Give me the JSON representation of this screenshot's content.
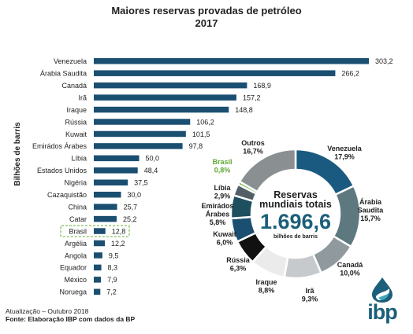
{
  "chart_data": [
    {
      "type": "bar",
      "orientation": "horizontal",
      "title": "Maiores reservas provadas de petróleo",
      "subtitle": "2017",
      "ylabel": "Bilhões de barris",
      "categories": [
        "Venezuela",
        "Árabia Saudita",
        "Canadá",
        "Irã",
        "Iraque",
        "Rússia",
        "Kuwait",
        "Emirádos Árabes",
        "Líbia",
        "Estados Unidos",
        "Nigéria",
        "Cazaquistão",
        "China",
        "Catar",
        "Brasil",
        "Argélia",
        "Angola",
        "Equador",
        "México",
        "Noruega"
      ],
      "values": [
        303.2,
        266.2,
        168.9,
        157.2,
        148.8,
        106.2,
        101.5,
        97.8,
        50.0,
        48.4,
        37.5,
        30.0,
        25.7,
        25.2,
        12.8,
        12.2,
        9.5,
        8.3,
        7.9,
        7.2
      ],
      "value_labels": [
        "303,2",
        "266,2",
        "168,9",
        "157,2",
        "148,8",
        "106,2",
        "101,5",
        "97,8",
        "50,0",
        "48,4",
        "37,5",
        "30,0",
        "25,7",
        "25,2",
        "12,8",
        "12,2",
        "9,5",
        "8,3",
        "7,9",
        "7,2"
      ],
      "highlight": "Brasil",
      "xlim": [
        0,
        303.2
      ],
      "bar_color": "#1b4f72",
      "highlight_color": "#74b843"
    },
    {
      "type": "pie",
      "style": "donut",
      "center_title": "Reservas mundiais totais",
      "center_value": "1.696,6",
      "center_unit": "bilhões de barris",
      "slices": [
        {
          "label": "Venezuela",
          "value": 17.9,
          "value_label": "17,9%",
          "color": "#1a5a80"
        },
        {
          "label": "Árabia Saudita",
          "value": 15.7,
          "value_label": "15,7%",
          "color": "#5e7880"
        },
        {
          "label": "Canadá",
          "value": 10.0,
          "value_label": "10,0%",
          "color": "#909a9e"
        },
        {
          "label": "Irã",
          "value": 9.3,
          "value_label": "9,3%",
          "color": "#c6cacc"
        },
        {
          "label": "Iraque",
          "value": 8.8,
          "value_label": "8,8%",
          "color": "#ebebeb"
        },
        {
          "label": "Rússia",
          "value": 6.3,
          "value_label": "6,3%",
          "color": "#111111"
        },
        {
          "label": "Kuwait",
          "value": 6.0,
          "value_label": "6,0%",
          "color": "#1b4f72"
        },
        {
          "label": "Emirádos Árabes",
          "value": 5.8,
          "value_label": "5,8%",
          "color": "#1d4f5e"
        },
        {
          "label": "Líbia",
          "value": 2.9,
          "value_label": "2,9%",
          "color": "#525f66"
        },
        {
          "label": "Brasil",
          "value": 0.8,
          "value_label": "0,8%",
          "color": "#74b843"
        },
        {
          "label": "Outros",
          "value": 16.7,
          "value_label": "16,7%",
          "color": "#8a8f91"
        }
      ],
      "highlight": "Brasil",
      "highlight_color": "#5fa832"
    }
  ],
  "footnotes": {
    "updated": "Atualização – Outubro 2018",
    "source": "Fonte: Elaboração IBP com dados da BP"
  },
  "logo": {
    "text": "ibp",
    "color": "#1b5f7a",
    "icon": "oil-drop-icon"
  }
}
